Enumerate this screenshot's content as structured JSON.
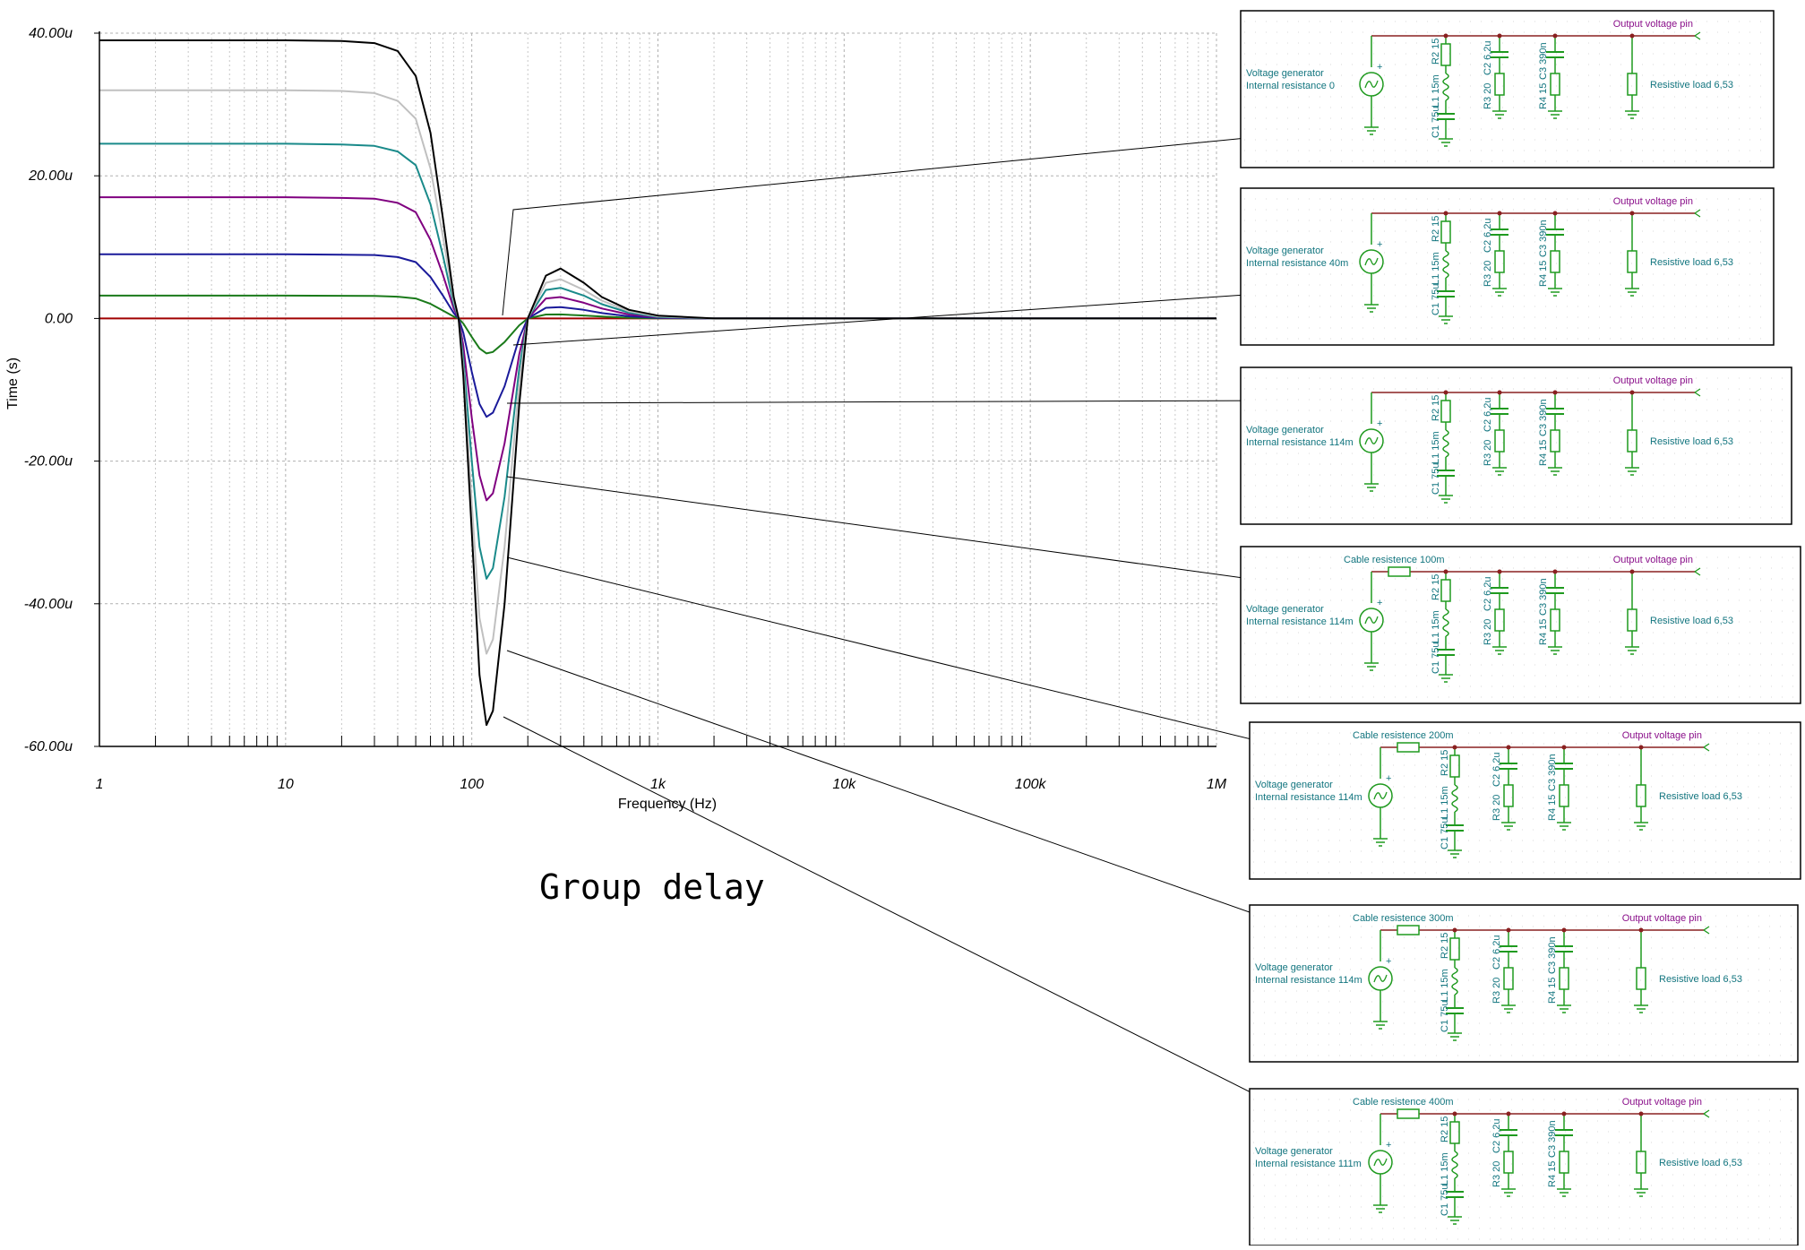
{
  "chart_data": {
    "type": "line",
    "caption": "Group delay",
    "xlabel": "Frequency (Hz)",
    "ylabel": "Time (s)",
    "x_scale": "log",
    "xlim": [
      1,
      1000000
    ],
    "ylim": [
      -6e-05,
      4e-05
    ],
    "x_tick_labels": [
      "1",
      "10",
      "100",
      "1k",
      "10k",
      "100k",
      "1M"
    ],
    "y_tick_labels": [
      "40.00u",
      "20.00u",
      "0.00",
      "-20.00u",
      "-40.00u",
      "-60.00u"
    ],
    "grid": true,
    "series": [
      {
        "color": "#000000",
        "x": [
          1,
          10,
          20,
          30,
          40,
          50,
          60,
          70,
          80,
          85,
          90,
          100,
          110,
          120,
          130,
          150,
          180,
          200,
          250,
          300,
          400,
          500,
          700,
          1000,
          2000,
          5000,
          10000,
          100000,
          1000000
        ],
        "y": [
          3.9e-05,
          3.9e-05,
          3.89e-05,
          3.86e-05,
          3.75e-05,
          3.4e-05,
          2.6e-05,
          1.4e-05,
          3e-06,
          0,
          -8e-06,
          -3e-05,
          -5e-05,
          -5.7e-05,
          -5.5e-05,
          -4e-05,
          -1.2e-05,
          0,
          6e-06,
          7e-06,
          5e-06,
          3e-06,
          1.2e-06,
          4e-07,
          0,
          0,
          0,
          0,
          0
        ]
      },
      {
        "color": "#c0c0c0",
        "x": [
          1,
          10,
          20,
          30,
          40,
          50,
          60,
          70,
          80,
          85,
          90,
          100,
          110,
          120,
          130,
          150,
          180,
          200,
          250,
          300,
          400,
          500,
          700,
          1000,
          2000,
          5000,
          10000,
          100000,
          1000000
        ],
        "y": [
          3.2e-05,
          3.2e-05,
          3.19e-05,
          3.16e-05,
          3.05e-05,
          2.8e-05,
          2.1e-05,
          1.15e-05,
          2.5e-06,
          0,
          -7e-06,
          -2.6e-05,
          -4.2e-05,
          -4.7e-05,
          -4.5e-05,
          -3.2e-05,
          -9e-06,
          0,
          5e-06,
          5.5e-06,
          4e-06,
          2.5e-06,
          1e-06,
          3e-07,
          0,
          0,
          0,
          0,
          0
        ]
      },
      {
        "color": "#1a8a8a",
        "x": [
          1,
          10,
          20,
          30,
          40,
          50,
          60,
          70,
          80,
          85,
          90,
          100,
          110,
          120,
          130,
          150,
          180,
          200,
          250,
          300,
          400,
          500,
          700,
          1000,
          2000,
          5000,
          10000,
          100000,
          1000000
        ],
        "y": [
          2.45e-05,
          2.45e-05,
          2.44e-05,
          2.42e-05,
          2.34e-05,
          2.15e-05,
          1.6e-05,
          8.8e-06,
          2e-06,
          0,
          -5.5e-06,
          -2e-05,
          -3.2e-05,
          -3.65e-05,
          -3.5e-05,
          -2.5e-05,
          -7e-06,
          0,
          4e-06,
          4.3e-06,
          3.2e-06,
          2e-06,
          8e-07,
          2e-07,
          0,
          0,
          0,
          0,
          0
        ]
      },
      {
        "color": "#800080",
        "x": [
          1,
          10,
          20,
          30,
          40,
          50,
          60,
          70,
          80,
          85,
          90,
          100,
          110,
          120,
          130,
          150,
          180,
          200,
          250,
          300,
          400,
          500,
          700,
          1000,
          2000,
          5000,
          10000,
          100000,
          1000000
        ],
        "y": [
          1.7e-05,
          1.7e-05,
          1.69e-05,
          1.68e-05,
          1.62e-05,
          1.49e-05,
          1.1e-05,
          6.1e-06,
          1.4e-06,
          0,
          -3.8e-06,
          -1.4e-05,
          -2.2e-05,
          -2.55e-05,
          -2.45e-05,
          -1.75e-05,
          -5e-06,
          0,
          2.8e-06,
          3e-06,
          2.2e-06,
          1.4e-06,
          5.5e-07,
          1.5e-07,
          0,
          0,
          0,
          0,
          0
        ]
      },
      {
        "color": "#1a1a9a",
        "x": [
          1,
          10,
          20,
          30,
          40,
          50,
          60,
          70,
          80,
          85,
          90,
          100,
          110,
          120,
          130,
          150,
          180,
          200,
          250,
          300,
          400,
          500,
          700,
          1000,
          2000,
          5000,
          10000,
          100000,
          1000000
        ],
        "y": [
          9e-06,
          9e-06,
          8.95e-06,
          8.9e-06,
          8.6e-06,
          7.9e-06,
          5.8e-06,
          3.2e-06,
          7.5e-07,
          0,
          -2e-06,
          -7.5e-06,
          -1.2e-05,
          -1.38e-05,
          -1.32e-05,
          -9.5e-06,
          -2.7e-06,
          0,
          1.5e-06,
          1.6e-06,
          1.2e-06,
          7.5e-07,
          3e-07,
          8e-08,
          0,
          0,
          0,
          0,
          0
        ]
      },
      {
        "color": "#1a7a1a",
        "x": [
          1,
          10,
          20,
          30,
          40,
          50,
          60,
          70,
          80,
          85,
          90,
          100,
          110,
          120,
          130,
          150,
          180,
          200,
          250,
          300,
          400,
          500,
          700,
          1000,
          2000,
          5000,
          10000,
          100000,
          1000000
        ],
        "y": [
          3.2e-06,
          3.2e-06,
          3.18e-06,
          3.15e-06,
          3.05e-06,
          2.8e-06,
          2.05e-06,
          1.1e-06,
          2.6e-07,
          0,
          -7e-07,
          -2.6e-06,
          -4.2e-06,
          -4.9e-06,
          -4.7e-06,
          -3.3e-06,
          -9.5e-07,
          0,
          5.5e-07,
          5.7e-07,
          4.2e-07,
          2.6e-07,
          1e-07,
          3e-08,
          0,
          0,
          0,
          0,
          0
        ]
      },
      {
        "color": "#a00000",
        "x": [
          1,
          1000000
        ],
        "y": [
          0,
          0
        ]
      }
    ]
  },
  "schematics": [
    {
      "gen_line1": "Voltage generator",
      "gen_line2": "Internal resistance 0",
      "cable": "",
      "pin": "Output voltage pin",
      "load": "Resistive load 6,53",
      "c1": "C1 75u",
      "l1": "L1 15m",
      "r2": "R2 15",
      "r3": "R3 20",
      "c2": "C2 6,2u",
      "r4": "R4 15",
      "c3": "C3 390n"
    },
    {
      "gen_line1": "Voltage generator",
      "gen_line2": "Internal resistance 40m",
      "cable": "",
      "pin": "Output voltage pin",
      "load": "Resistive load 6,53",
      "c1": "C1 75u",
      "l1": "L1 15m",
      "r2": "R2 15",
      "r3": "R3 20",
      "c2": "C2 6,2u",
      "r4": "R4 15",
      "c3": "C3 390n"
    },
    {
      "gen_line1": "Voltage generator",
      "gen_line2": "Internal resistance 114m",
      "cable": "",
      "pin": "Output voltage pin",
      "load": "Resistive load 6,53",
      "c1": "C1 75u",
      "l1": "L1 15m",
      "r2": "R2 15",
      "r3": "R3 20",
      "c2": "C2 6,2u",
      "r4": "R4 15",
      "c3": "C3 390n"
    },
    {
      "gen_line1": "Voltage generator",
      "gen_line2": "Internal resistance 114m",
      "cable": "Cable resistence 100m",
      "pin": "Output voltage pin",
      "load": "Resistive load 6,53",
      "c1": "C1 75u",
      "l1": "L1 15m",
      "r2": "R2 15",
      "r3": "R3 20",
      "c2": "C2 6,2u",
      "r4": "R4 15",
      "c3": "C3 390n"
    },
    {
      "gen_line1": "Voltage generator",
      "gen_line2": "Internal resistance 114m",
      "cable": "Cable resistence 200m",
      "pin": "Output voltage pin",
      "load": "Resistive load 6,53",
      "c1": "C1 75u",
      "l1": "L1 15m",
      "r2": "R2 15",
      "r3": "R3 20",
      "c2": "C2 6,2u",
      "r4": "R4 15",
      "c3": "C3 390n"
    },
    {
      "gen_line1": "Voltage generator",
      "gen_line2": "Internal resistance 114m",
      "cable": "Cable resistence 300m",
      "pin": "Output voltage pin",
      "load": "Resistive load 6,53",
      "c1": "C1 75u",
      "l1": "L1 15m",
      "r2": "R2 15",
      "r3": "R3 20",
      "c2": "C2 6,2u",
      "r4": "R4 15",
      "c3": "C3 390n"
    },
    {
      "gen_line1": "Voltage generator",
      "gen_line2": "Internal resistance 111m",
      "cable": "Cable resistence 400m",
      "pin": "Output voltage pin",
      "load": "Resistive load 6,53",
      "c1": "C1 75u",
      "l1": "L1 15m",
      "r2": "R2 15",
      "r3": "R3 20",
      "c2": "C2 6,2u",
      "r4": "R4 15",
      "c3": "C3 390n"
    }
  ]
}
